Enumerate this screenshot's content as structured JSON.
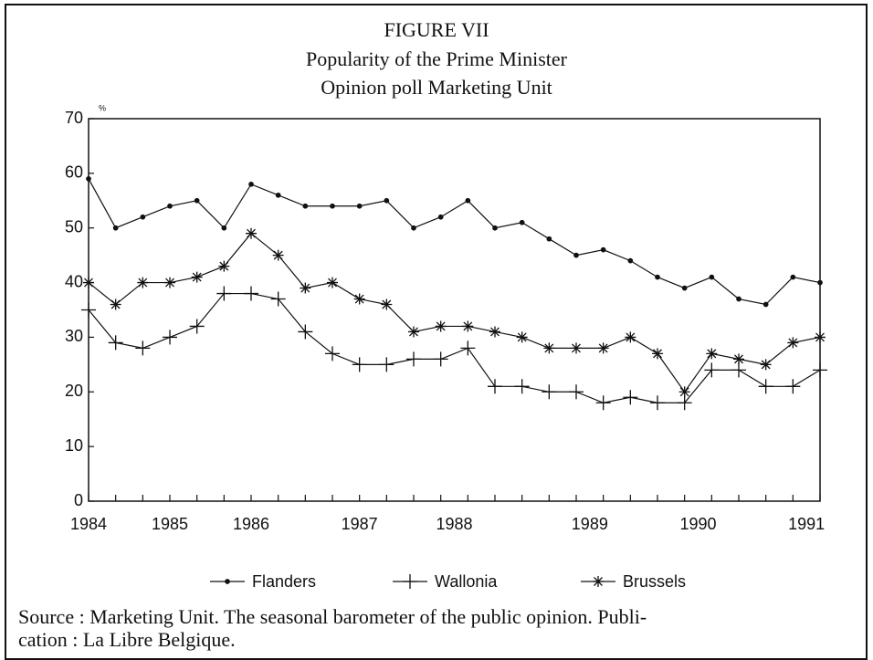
{
  "chart_data": {
    "type": "line",
    "title": "FIGURE VII",
    "subtitle": [
      "Popularity of the Prime Minister",
      "Opinion poll Marketing Unit"
    ],
    "ylabel": "%",
    "categories": [
      null,
      null,
      null,
      null,
      null,
      null,
      null,
      null,
      null,
      null,
      null,
      null,
      null,
      null,
      null,
      null,
      null,
      null,
      null,
      null,
      null,
      null,
      null,
      null,
      null,
      null,
      null,
      null
    ],
    "xticks": [
      {
        "value": 0,
        "label": "1984"
      },
      {
        "value": 3,
        "label": "1985"
      },
      {
        "value": 6,
        "label": "1986"
      },
      {
        "value": 10,
        "label": "1987"
      },
      {
        "value": 13.5,
        "label": "1988"
      },
      {
        "value": 18.5,
        "label": "1989"
      },
      {
        "value": 22.5,
        "label": "1990"
      },
      {
        "value": 26.5,
        "label": "1991"
      }
    ],
    "ylim": [
      0,
      70
    ],
    "yticks": [
      0,
      10,
      20,
      30,
      40,
      50,
      60,
      70
    ],
    "grid": false,
    "series": [
      {
        "name": "Flanders",
        "color": "#111111",
        "marker": "dot",
        "values": [
          59,
          50,
          52,
          54,
          55,
          50,
          58,
          56,
          54,
          54,
          54,
          55,
          50,
          52,
          55,
          50,
          51,
          48,
          45,
          46,
          44,
          41,
          39,
          41,
          37,
          36,
          41,
          40
        ]
      },
      {
        "name": "Wallonia",
        "color": "#111111",
        "marker": "plus",
        "values": [
          35,
          29,
          28,
          30,
          32,
          38,
          38,
          37,
          31,
          27,
          25,
          25,
          26,
          26,
          28,
          21,
          21,
          20,
          20,
          18,
          19,
          18,
          18,
          24,
          24,
          21,
          21,
          24
        ]
      },
      {
        "name": "Brussels",
        "color": "#111111",
        "marker": "asterisk",
        "values": [
          40,
          36,
          40,
          40,
          41,
          43,
          49,
          45,
          39,
          40,
          37,
          36,
          31,
          32,
          32,
          31,
          30,
          28,
          28,
          28,
          30,
          27,
          20,
          27,
          26,
          25,
          29,
          30
        ]
      }
    ],
    "source": [
      "Source : Marketing Unit. The seasonal barometer of the public opinion. Publi-",
      "cation : La Libre Belgique."
    ]
  }
}
